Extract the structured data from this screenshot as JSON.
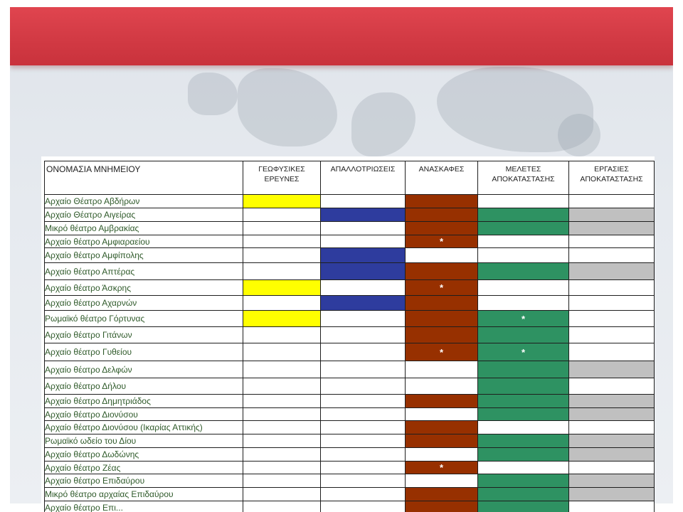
{
  "headers": {
    "name": "ΟΝΟΜΑΣΙΑ ΜΝΗΜΕΙΟΥ",
    "geophys": "ΓΕΩΦΥΣΙΚΕΣ ΕΡΕΥΝΕΣ",
    "expro": "ΑΠΑΛΛΟΤΡΙΩΣΕΙΣ",
    "excav": "ΑΝΑΣΚΑΦΕΣ",
    "studies": "ΜΕΛΕΤΕΣ ΑΠΟΚΑΤΑΣΤΑΣΗΣ",
    "works": "ΕΡΓΑΣΙΕΣ ΑΠΟΚΑΤΑΣΤΑΣΗΣ"
  },
  "legend_colors": {
    "geophysical": "#ffff00",
    "expropriations": "#2e3c9e",
    "excavations": "#973000",
    "studies": "#2e9262",
    "works": "#c0c0c0"
  },
  "rows": [
    {
      "name": "Αρχαίο Θέατρο Αβδήρων",
      "cells": [
        "y",
        "",
        "r",
        "",
        ""
      ],
      "marks": [
        "",
        "",
        "",
        "",
        ""
      ],
      "h": 19
    },
    {
      "name": "Αρχαίο Θέατρο Αιγείρας",
      "cells": [
        "",
        "b",
        "r",
        "g",
        "s"
      ],
      "marks": [
        "",
        "",
        "",
        "",
        ""
      ],
      "h": 19
    },
    {
      "name": "Μικρό θέατρο Αμβρακίας",
      "cells": [
        "",
        "",
        "r",
        "g",
        "s"
      ],
      "marks": [
        "",
        "",
        "",
        "",
        ""
      ],
      "h": 19
    },
    {
      "name": "Αρχαίο θέατρο Αμφιαραείου",
      "cells": [
        "",
        "",
        "r",
        "",
        ""
      ],
      "marks": [
        "",
        "",
        "*",
        "",
        ""
      ],
      "h": 18
    },
    {
      "name": "Αρχαίο θέατρο Αμφίπολης",
      "cells": [
        "",
        "b",
        "",
        "",
        ""
      ],
      "marks": [
        "",
        "",
        "",
        "",
        ""
      ],
      "h": 21
    },
    {
      "name": "Αρχαίο θέατρο Απτέρας",
      "cells": [
        "",
        "b",
        "r",
        "g",
        "s"
      ],
      "marks": [
        "",
        "",
        "",
        "",
        ""
      ],
      "h": 24
    },
    {
      "name": "Αρχαίο θέατρο Άσκρης",
      "cells": [
        "y",
        "",
        "r",
        "",
        ""
      ],
      "marks": [
        "",
        "",
        "*",
        "",
        ""
      ],
      "h": 22
    },
    {
      "name": "Αρχαίο θέατρο Αχαρνών",
      "cells": [
        "",
        "b",
        "r",
        "",
        ""
      ],
      "marks": [
        "",
        "",
        "",
        "",
        ""
      ],
      "h": 21
    },
    {
      "name": "Ρωμαϊκό θέατρο Γόρτυνας",
      "cells": [
        "y",
        "",
        "r",
        "g",
        ""
      ],
      "marks": [
        "",
        "",
        "",
        "*",
        ""
      ],
      "h": 23
    },
    {
      "name": "Αρχαίο θέατρο Γιτάνων",
      "cells": [
        "",
        "",
        "r",
        "g",
        ""
      ],
      "marks": [
        "",
        "",
        "",
        "",
        ""
      ],
      "h": 23
    },
    {
      "name": "Αρχαίο θέατρο Γυθείου",
      "cells": [
        "",
        "",
        "r",
        "g",
        ""
      ],
      "marks": [
        "",
        "",
        "*",
        "*",
        ""
      ],
      "h": 25
    },
    {
      "name": "Αρχαίο θέατρο Δελφών",
      "cells": [
        "",
        "",
        "",
        "g",
        "s"
      ],
      "marks": [
        "",
        "",
        "",
        "",
        ""
      ],
      "h": 24
    },
    {
      "name": "Αρχαίο θέατρο Δήλου",
      "cells": [
        "",
        "",
        "",
        "g",
        ""
      ],
      "marks": [
        "",
        "",
        "",
        "",
        ""
      ],
      "h": 23
    },
    {
      "name": "Αρχαίο θέατρο Δημητριάδος",
      "cells": [
        "",
        "",
        "r",
        "g",
        "s"
      ],
      "marks": [
        "",
        "",
        "",
        "",
        ""
      ],
      "h": 19
    },
    {
      "name": "Αρχαίο θέατρο Διονύσου",
      "cells": [
        "",
        "",
        "",
        "g",
        "s"
      ],
      "marks": [
        "",
        "",
        "",
        "",
        ""
      ],
      "h": 18
    },
    {
      "name": "Αρχαίο θέατρο Διονύσου (Ικαρίας Αττικής)",
      "cells": [
        "",
        "",
        "r",
        "",
        ""
      ],
      "marks": [
        "",
        "",
        "",
        "",
        ""
      ],
      "h": 19
    },
    {
      "name": "Ρωμαϊκό ωδείο του Δίου",
      "cells": [
        "",
        "",
        "r",
        "g",
        "s"
      ],
      "marks": [
        "",
        "",
        "",
        "",
        ""
      ],
      "h": 19
    },
    {
      "name": "Αρχαίο θέατρο Δωδώνης",
      "cells": [
        "",
        "",
        "",
        "g",
        "s"
      ],
      "marks": [
        "",
        "",
        "",
        "",
        ""
      ],
      "h": 19
    },
    {
      "name": "Αρχαίο θέατρο Ζέας",
      "cells": [
        "",
        "",
        "r",
        "",
        ""
      ],
      "marks": [
        "",
        "",
        "*",
        "",
        ""
      ],
      "h": 18
    },
    {
      "name": "Αρχαίο θέατρο Επιδαύρου",
      "cells": [
        "",
        "",
        "",
        "g",
        "s"
      ],
      "marks": [
        "",
        "",
        "",
        "",
        ""
      ],
      "h": 19
    },
    {
      "name": "Μικρό θέατρο αρχαίας Επιδαύρου",
      "cells": [
        "",
        "",
        "r",
        "g",
        "s"
      ],
      "marks": [
        "",
        "",
        "",
        "",
        ""
      ],
      "h": 19
    },
    {
      "name": "Αρχαίο θέατρο Επι...",
      "cells": [
        "",
        "",
        "r",
        "g",
        ""
      ],
      "marks": [
        "",
        "",
        "",
        "",
        ""
      ],
      "h": 19
    }
  ]
}
